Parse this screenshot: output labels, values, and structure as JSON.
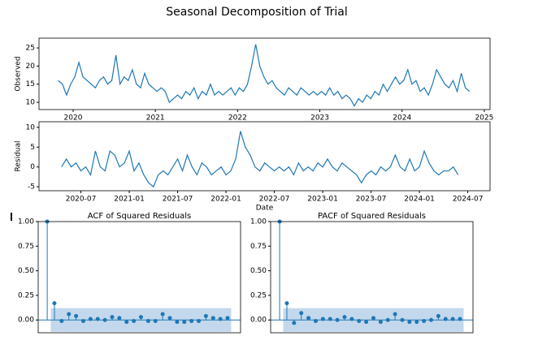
{
  "title": "Seasonal Decomposition of Trial",
  "chart_data": [
    {
      "type": "line",
      "ylabel": "Observed",
      "color": "#1f77b4",
      "xlim": [
        2019.585,
        2025.07
      ],
      "xticks": [
        2020,
        2021,
        2022,
        2023,
        2024,
        2025
      ],
      "ylim": [
        8,
        27.7
      ],
      "yticks": [
        10,
        15,
        20,
        25
      ],
      "x": [
        2019.82,
        2019.87,
        2019.92,
        2019.97,
        2020.02,
        2020.07,
        2020.12,
        2020.17,
        2020.22,
        2020.27,
        2020.32,
        2020.37,
        2020.42,
        2020.47,
        2020.52,
        2020.57,
        2020.62,
        2020.67,
        2020.72,
        2020.77,
        2020.82,
        2020.87,
        2020.92,
        2020.97,
        2021.02,
        2021.07,
        2021.12,
        2021.17,
        2021.22,
        2021.27,
        2021.32,
        2021.37,
        2021.42,
        2021.47,
        2021.52,
        2021.57,
        2021.62,
        2021.67,
        2021.72,
        2021.77,
        2021.82,
        2021.87,
        2021.92,
        2021.97,
        2022.02,
        2022.07,
        2022.12,
        2022.17,
        2022.22,
        2022.27,
        2022.32,
        2022.37,
        2022.42,
        2022.47,
        2022.52,
        2022.57,
        2022.62,
        2022.67,
        2022.72,
        2022.77,
        2022.82,
        2022.87,
        2022.92,
        2022.97,
        2023.02,
        2023.07,
        2023.12,
        2023.17,
        2023.22,
        2023.27,
        2023.32,
        2023.37,
        2023.42,
        2023.47,
        2023.52,
        2023.57,
        2023.62,
        2023.67,
        2023.72,
        2023.77,
        2023.82,
        2023.87,
        2023.92,
        2023.97,
        2024.02,
        2024.07,
        2024.12,
        2024.17,
        2024.22,
        2024.27,
        2024.32,
        2024.37,
        2024.42,
        2024.47,
        2024.52,
        2024.57,
        2024.62,
        2024.67,
        2024.72,
        2024.77,
        2024.82
      ],
      "values": [
        16,
        15,
        12,
        15,
        17,
        21,
        17,
        16,
        15,
        14,
        16,
        17,
        15,
        16,
        23,
        15,
        17,
        16,
        19,
        15,
        14,
        18,
        15,
        14,
        13,
        14,
        13,
        10,
        11,
        12,
        11,
        13,
        12,
        14,
        11,
        13,
        12,
        15,
        12,
        13,
        12,
        13,
        14,
        12,
        14,
        13,
        15,
        20,
        26,
        20,
        17,
        15,
        16,
        14,
        13,
        12,
        14,
        13,
        12,
        14,
        13,
        12,
        13,
        12,
        13,
        12,
        14,
        12,
        13,
        11,
        12,
        11,
        9,
        11,
        10,
        12,
        11,
        13,
        12,
        15,
        13,
        15,
        17,
        15,
        16,
        19,
        15,
        16,
        13,
        14,
        12,
        15,
        19,
        17,
        15,
        14,
        16,
        13,
        18,
        14,
        13
      ]
    },
    {
      "type": "line",
      "ylabel": "Residual",
      "xlabel": "Date",
      "color": "#1f77b4",
      "xlim": [
        2020.067,
        2024.73
      ],
      "xticks": [
        {
          "value": 2020.5,
          "label": "2020-07"
        },
        {
          "value": 2021.0,
          "label": "2021-01"
        },
        {
          "value": 2021.5,
          "label": "2021-07"
        },
        {
          "value": 2022.0,
          "label": "2022-01"
        },
        {
          "value": 2022.5,
          "label": "2022-07"
        },
        {
          "value": 2023.0,
          "label": "2023-01"
        },
        {
          "value": 2023.5,
          "label": "2023-07"
        },
        {
          "value": 2024.0,
          "label": "2024-01"
        },
        {
          "value": 2024.5,
          "label": "2024-07"
        }
      ],
      "ylim": [
        -6,
        11.4
      ],
      "yticks": [
        -5,
        0,
        5,
        10
      ],
      "x": [
        2020.3,
        2020.35,
        2020.4,
        2020.45,
        2020.5,
        2020.55,
        2020.6,
        2020.65,
        2020.7,
        2020.75,
        2020.8,
        2020.85,
        2020.9,
        2020.95,
        2021.0,
        2021.05,
        2021.1,
        2021.15,
        2021.2,
        2021.25,
        2021.3,
        2021.35,
        2021.4,
        2021.45,
        2021.5,
        2021.55,
        2021.6,
        2021.65,
        2021.7,
        2021.75,
        2021.8,
        2021.85,
        2021.9,
        2021.95,
        2022.0,
        2022.05,
        2022.1,
        2022.15,
        2022.2,
        2022.25,
        2022.3,
        2022.35,
        2022.4,
        2022.45,
        2022.5,
        2022.55,
        2022.6,
        2022.65,
        2022.7,
        2022.75,
        2022.8,
        2022.85,
        2022.9,
        2022.95,
        2023.0,
        2023.05,
        2023.1,
        2023.15,
        2023.2,
        2023.25,
        2023.3,
        2023.35,
        2023.4,
        2023.45,
        2023.5,
        2023.55,
        2023.6,
        2023.65,
        2023.7,
        2023.75,
        2023.8,
        2023.85,
        2023.9,
        2023.95,
        2024.0,
        2024.05,
        2024.1,
        2024.15,
        2024.2,
        2024.25,
        2024.3,
        2024.35,
        2024.4
      ],
      "values": [
        0,
        2,
        0,
        1,
        -1,
        0,
        -2,
        4,
        0,
        -1,
        4,
        3,
        0,
        1,
        4,
        -1,
        1,
        -2,
        -4,
        -5,
        -2,
        -1,
        -2,
        0,
        2,
        -1,
        3,
        0,
        -2,
        1,
        0,
        -2,
        -1,
        0,
        -2,
        -1,
        2,
        9,
        5,
        3,
        0,
        -1,
        1,
        0,
        -1,
        0,
        -1,
        0,
        -2,
        1,
        -1,
        0,
        -1,
        1,
        0,
        2,
        0,
        -1,
        1,
        0,
        -1,
        -2,
        -4,
        -2,
        -1,
        -2,
        0,
        -1,
        0,
        3,
        0,
        -1,
        2,
        -1,
        0,
        4,
        1,
        -1,
        -2,
        -1,
        -1,
        0,
        -2
      ]
    },
    {
      "type": "stem",
      "title": "ACF of Squared Residuals",
      "color": "#1f77b4",
      "band_color": "#a9c8e4",
      "xlim": [
        -1.25,
        26.8
      ],
      "ylim": [
        -0.13,
        1.0
      ],
      "yticks": [
        {
          "value": 0,
          "label": "0.00"
        },
        {
          "value": 0.25,
          "label": "0.25"
        },
        {
          "value": 0.5,
          "label": "0.50"
        },
        {
          "value": 0.75,
          "label": "0.75"
        },
        {
          "value": 1,
          "label": "1.00"
        }
      ],
      "confidence_band": 0.12,
      "x": [
        0,
        1,
        2,
        3,
        4,
        5,
        6,
        7,
        8,
        9,
        10,
        11,
        12,
        13,
        14,
        15,
        16,
        17,
        18,
        19,
        20,
        21,
        22,
        23,
        24,
        25
      ],
      "values": [
        1,
        0.17,
        -0.01,
        0.06,
        0.04,
        -0.01,
        0.01,
        0.01,
        0,
        0.03,
        0.02,
        -0.02,
        -0.01,
        0.03,
        -0.01,
        -0.01,
        0.06,
        0.02,
        -0.02,
        -0.02,
        -0.01,
        -0.01,
        0.04,
        0.02,
        0.01,
        0.02
      ]
    },
    {
      "type": "stem",
      "title": "PACF of Squared Residuals",
      "color": "#1f77b4",
      "band_color": "#a9c8e4",
      "xlim": [
        -1.25,
        26.8
      ],
      "ylim": [
        -0.13,
        1.0
      ],
      "yticks": [
        {
          "value": 0,
          "label": "0.00"
        },
        {
          "value": 0.25,
          "label": "0.25"
        },
        {
          "value": 0.5,
          "label": "0.50"
        },
        {
          "value": 0.75,
          "label": "0.75"
        },
        {
          "value": 1,
          "label": "1.00"
        }
      ],
      "confidence_band": 0.12,
      "x": [
        0,
        1,
        2,
        3,
        4,
        5,
        6,
        7,
        8,
        9,
        10,
        11,
        12,
        13,
        14,
        15,
        16,
        17,
        18,
        19,
        20,
        21,
        22,
        23,
        24,
        25
      ],
      "values": [
        1,
        0.17,
        -0.03,
        0.07,
        0.02,
        -0.01,
        0.01,
        0.01,
        0,
        0.03,
        0.01,
        -0.01,
        -0.02,
        0.02,
        -0.02,
        0,
        0.06,
        0,
        -0.02,
        -0.02,
        -0.01,
        0,
        0.04,
        0.01,
        0.01,
        0.01
      ]
    }
  ]
}
